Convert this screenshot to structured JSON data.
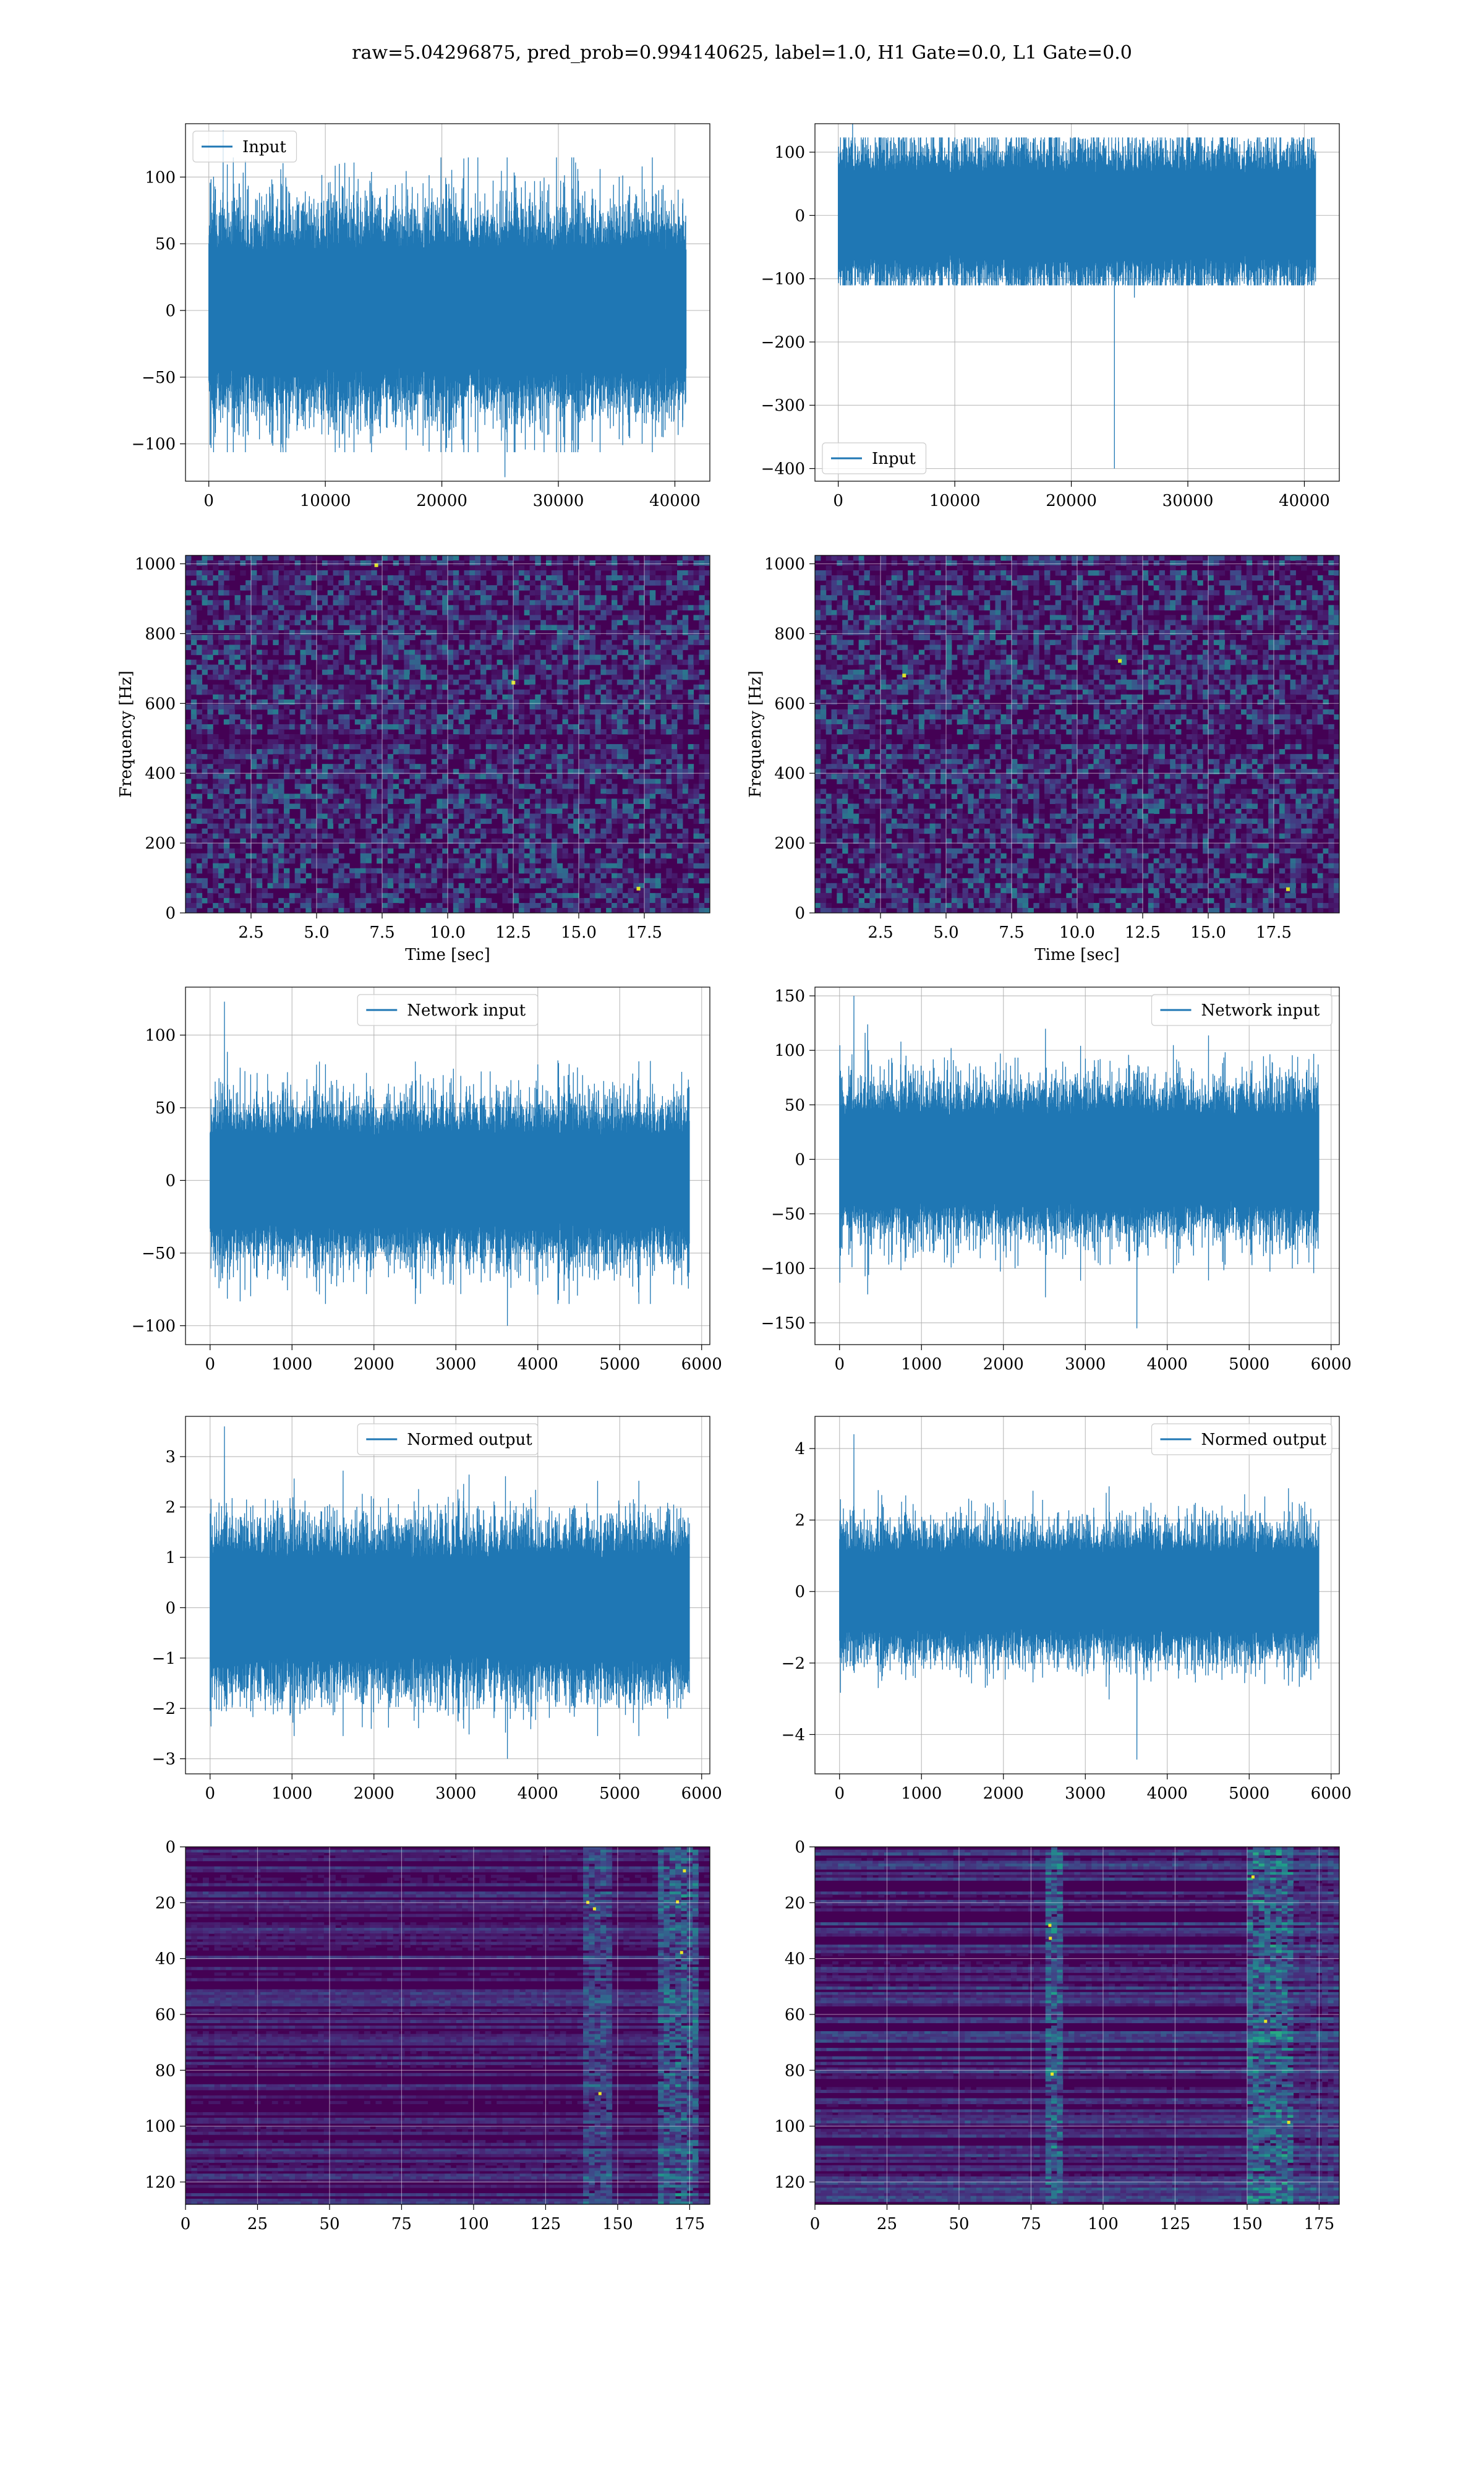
{
  "figure_title": "raw=5.04296875, pred_prob=0.994140625, label=1.0, H1 Gate=0.0, L1 Gate=0.0",
  "colors": {
    "series": "#1f77b4",
    "grid": "#b0b0b0",
    "viridis_low": "#440154",
    "viridis_high": "#fde725"
  },
  "chart_data": [
    {
      "id": "r0c0",
      "type": "line",
      "series": [
        {
          "name": "Input"
        }
      ],
      "legend": "upper left",
      "xticks": [
        "0",
        "10000",
        "20000",
        "30000",
        "40000"
      ],
      "yticks": [
        "−100",
        "−50",
        "0",
        "50",
        "100"
      ],
      "xlim": [
        -2000,
        43000
      ],
      "ylim": [
        -128,
        140
      ],
      "grid": true,
      "x_range": [
        0,
        40960
      ],
      "band": [
        -50,
        50
      ],
      "peaks": [
        -125,
        135
      ]
    },
    {
      "id": "r0c1",
      "type": "line",
      "series": [
        {
          "name": "Input"
        }
      ],
      "legend": "lower left",
      "xticks": [
        "0",
        "10000",
        "20000",
        "30000",
        "40000"
      ],
      "yticks": [
        "−400",
        "−300",
        "−200",
        "−100",
        "0",
        "100"
      ],
      "xlim": [
        -2000,
        43000
      ],
      "ylim": [
        -420,
        145
      ],
      "grid": true,
      "x_range": [
        0,
        40960
      ],
      "band": [
        -75,
        75
      ],
      "peaks": [
        -130,
        145
      ],
      "spike": {
        "x": 23700,
        "y": -400
      }
    },
    {
      "id": "r1c0",
      "type": "heatmap",
      "xlabel": "Time [sec]",
      "ylabel": "Frequency [Hz]",
      "xticks": [
        "2.5",
        "5.0",
        "7.5",
        "10.0",
        "12.5",
        "15.0",
        "17.5"
      ],
      "yticks": [
        "0",
        "200",
        "400",
        "600",
        "800",
        "1000"
      ],
      "xlim": [
        0,
        20
      ],
      "ylim": [
        0,
        1024
      ],
      "grid": true
    },
    {
      "id": "r1c1",
      "type": "heatmap",
      "xlabel": "Time [sec]",
      "ylabel": "Frequency [Hz]",
      "xticks": [
        "2.5",
        "5.0",
        "7.5",
        "10.0",
        "12.5",
        "15.0",
        "17.5"
      ],
      "yticks": [
        "0",
        "200",
        "400",
        "600",
        "800",
        "1000"
      ],
      "xlim": [
        0,
        20
      ],
      "ylim": [
        0,
        1024
      ],
      "grid": true
    },
    {
      "id": "r2c0",
      "type": "line",
      "series": [
        {
          "name": "Network input"
        }
      ],
      "legend": "upper center",
      "xticks": [
        "0",
        "1000",
        "2000",
        "3000",
        "4000",
        "5000",
        "6000"
      ],
      "yticks": [
        "−100",
        "−50",
        "0",
        "50",
        "100"
      ],
      "xlim": [
        -300,
        6100
      ],
      "ylim": [
        -113,
        133
      ],
      "grid": true,
      "x_range": [
        0,
        5850
      ],
      "band": [
        -35,
        35
      ],
      "peaks": [
        -100,
        123
      ]
    },
    {
      "id": "r2c1",
      "type": "line",
      "series": [
        {
          "name": "Network input"
        }
      ],
      "legend": "upper right",
      "xticks": [
        "0",
        "1000",
        "2000",
        "3000",
        "4000",
        "5000",
        "6000"
      ],
      "yticks": [
        "−150",
        "−100",
        "−50",
        "0",
        "50",
        "100",
        "150"
      ],
      "xlim": [
        -300,
        6100
      ],
      "ylim": [
        -170,
        158
      ],
      "grid": true,
      "x_range": [
        0,
        5850
      ],
      "band": [
        -45,
        45
      ],
      "peaks": [
        -155,
        150
      ]
    },
    {
      "id": "r3c0",
      "type": "line",
      "series": [
        {
          "name": "Normed output"
        }
      ],
      "legend": "upper center",
      "xticks": [
        "0",
        "1000",
        "2000",
        "3000",
        "4000",
        "5000",
        "6000"
      ],
      "yticks": [
        "−3",
        "−2",
        "−1",
        "0",
        "1",
        "2",
        "3"
      ],
      "xlim": [
        -300,
        6100
      ],
      "ylim": [
        -3.3,
        3.8
      ],
      "grid": true,
      "x_range": [
        0,
        5850
      ],
      "band": [
        -1.1,
        1.1
      ],
      "peaks": [
        -3.0,
        3.6
      ]
    },
    {
      "id": "r3c1",
      "type": "line",
      "series": [
        {
          "name": "Normed output"
        }
      ],
      "legend": "upper right",
      "xticks": [
        "0",
        "1000",
        "2000",
        "3000",
        "4000",
        "5000",
        "6000"
      ],
      "yticks": [
        "−4",
        "−2",
        "0",
        "2",
        "4"
      ],
      "xlim": [
        -300,
        6100
      ],
      "ylim": [
        -5.1,
        4.9
      ],
      "grid": true,
      "x_range": [
        0,
        5850
      ],
      "band": [
        -1.2,
        1.2
      ],
      "peaks": [
        -4.7,
        4.4
      ]
    },
    {
      "id": "r4c0",
      "type": "heatmap",
      "xticks": [
        "0",
        "25",
        "50",
        "75",
        "100",
        "125",
        "150",
        "175"
      ],
      "yticks": [
        "0",
        "20",
        "40",
        "60",
        "80",
        "100",
        "120"
      ],
      "xlim": [
        0,
        182
      ],
      "ylim": [
        128,
        0
      ],
      "grid": true
    },
    {
      "id": "r4c1",
      "type": "heatmap",
      "xticks": [
        "0",
        "25",
        "50",
        "75",
        "100",
        "125",
        "150",
        "175"
      ],
      "yticks": [
        "0",
        "20",
        "40",
        "60",
        "80",
        "100",
        "120"
      ],
      "xlim": [
        0,
        182
      ],
      "ylim": [
        128,
        0
      ],
      "grid": true
    }
  ]
}
